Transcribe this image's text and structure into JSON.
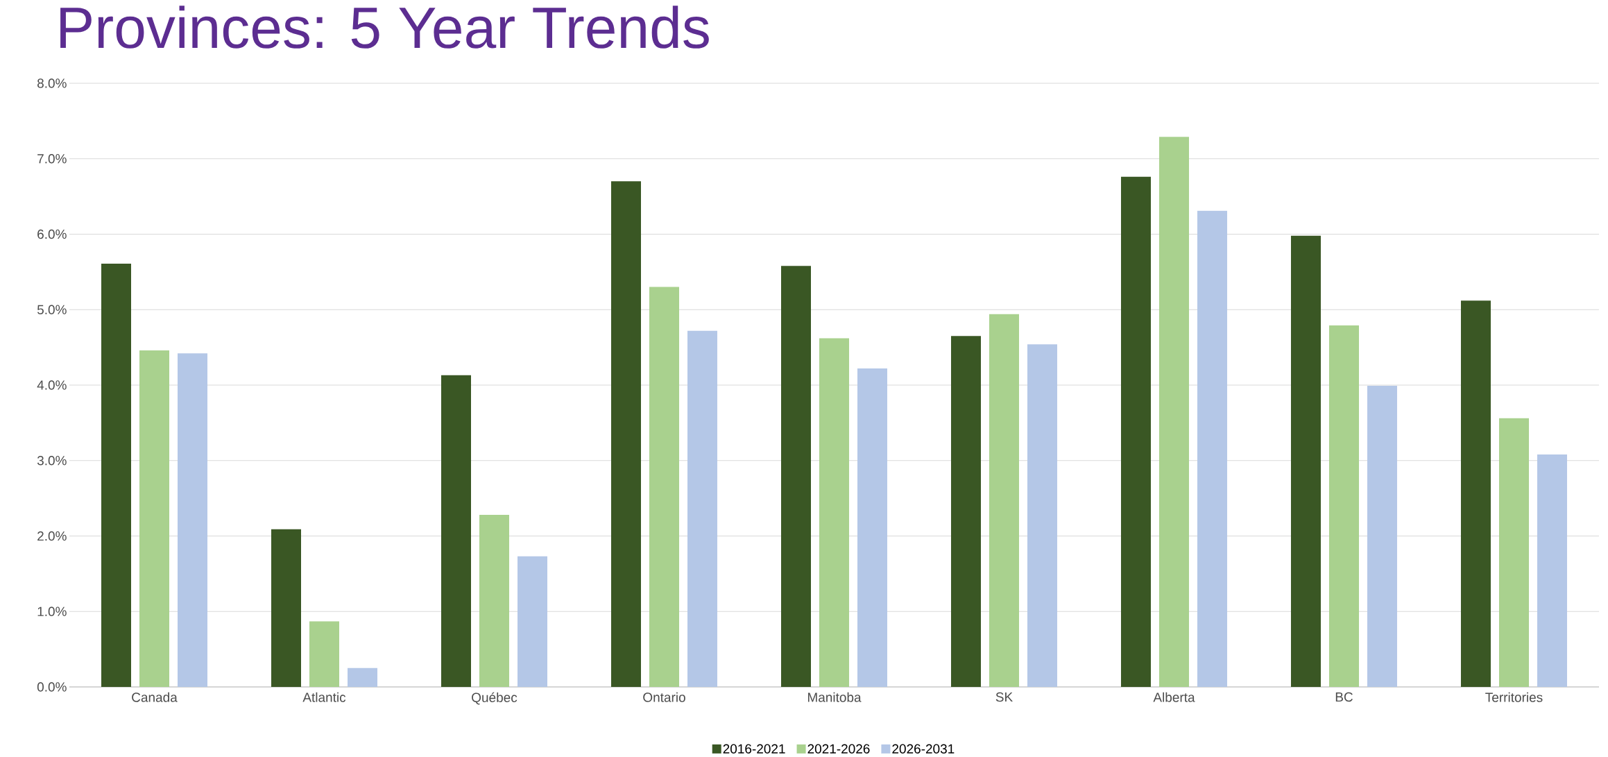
{
  "chart_data": {
    "type": "bar",
    "title": "Provinces: 5 Year Trends",
    "categories": [
      "Canada",
      "Atlantic",
      "Québec",
      "Ontario",
      "Manitoba",
      "SK",
      "Alberta",
      "BC",
      "Territories"
    ],
    "series": [
      {
        "name": "2016-2021",
        "color": "#3a5724",
        "values": [
          5.61,
          2.09,
          4.13,
          6.7,
          5.58,
          4.65,
          6.76,
          5.98,
          5.12
        ]
      },
      {
        "name": "2021-2026",
        "color": "#a9d18e",
        "values": [
          4.46,
          0.87,
          2.28,
          5.3,
          4.62,
          4.94,
          7.29,
          4.79,
          3.56
        ]
      },
      {
        "name": "2026-2031",
        "color": "#b4c7e7",
        "values": [
          4.42,
          0.25,
          1.73,
          4.72,
          4.22,
          4.54,
          6.31,
          3.99,
          3.08
        ]
      }
    ],
    "ylim": [
      0,
      8
    ],
    "yticks": [
      {
        "value": 0,
        "label": "0.0%"
      },
      {
        "value": 1,
        "label": "1.0%"
      },
      {
        "value": 2,
        "label": "2.0%"
      },
      {
        "value": 3,
        "label": "3.0%"
      },
      {
        "value": 4,
        "label": "4.0%"
      },
      {
        "value": 5,
        "label": "5.0%"
      },
      {
        "value": 6,
        "label": "6.0%"
      },
      {
        "value": 7,
        "label": "7.0%"
      },
      {
        "value": 8,
        "label": "8.0%"
      }
    ],
    "grid": "y",
    "legend": "bottom"
  }
}
